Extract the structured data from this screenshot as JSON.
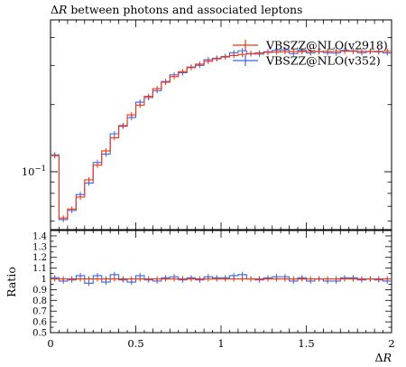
{
  "chart_data": [
    {
      "type": "line",
      "title": "ΔR between photons and associated leptons",
      "yscale": "log",
      "xlim": [
        0,
        2
      ],
      "ylim": [
        0.055,
        0.48
      ],
      "y_tick_labels": [
        {
          "value": 0.1,
          "text": "10^-1"
        }
      ],
      "legend": {
        "position": "top-right"
      },
      "x": [
        0.025,
        0.075,
        0.125,
        0.175,
        0.225,
        0.275,
        0.325,
        0.375,
        0.425,
        0.475,
        0.525,
        0.575,
        0.625,
        0.675,
        0.725,
        0.775,
        0.825,
        0.875,
        0.925,
        0.975,
        1.025,
        1.075,
        1.125,
        1.175,
        1.225,
        1.275,
        1.325,
        1.375,
        1.425,
        1.475,
        1.525,
        1.575,
        1.625,
        1.675,
        1.725,
        1.775,
        1.825,
        1.875,
        1.925,
        1.975
      ],
      "series": [
        {
          "name": "VBSZZ@NLO(v2918)",
          "color": "#ee3311",
          "values": [
            0.118,
            0.062,
            0.068,
            0.077,
            0.092,
            0.107,
            0.124,
            0.142,
            0.161,
            0.18,
            0.199,
            0.218,
            0.236,
            0.252,
            0.267,
            0.281,
            0.293,
            0.304,
            0.313,
            0.321,
            0.327,
            0.332,
            0.336,
            0.339,
            0.341,
            0.343,
            0.344,
            0.345,
            0.346,
            0.346,
            0.347,
            0.347,
            0.347,
            0.347,
            0.347,
            0.347,
            0.347,
            0.347,
            0.347,
            0.347
          ]
        },
        {
          "name": "VBSZZ@NLO(v352)",
          "color": "#3366ee",
          "values": [
            0.119,
            0.061,
            0.067,
            0.079,
            0.089,
            0.11,
            0.12,
            0.148,
            0.16,
            0.175,
            0.205,
            0.215,
            0.231,
            0.254,
            0.272,
            0.278,
            0.295,
            0.3,
            0.318,
            0.323,
            0.329,
            0.342,
            0.349,
            0.338,
            0.337,
            0.345,
            0.35,
            0.352,
            0.339,
            0.35,
            0.341,
            0.346,
            0.342,
            0.341,
            0.35,
            0.349,
            0.342,
            0.346,
            0.345,
            0.341
          ]
        }
      ]
    },
    {
      "type": "line",
      "xlabel": "ΔR",
      "ylabel": "Ratio",
      "xlim": [
        0,
        2
      ],
      "ylim": [
        0.5,
        1.45
      ],
      "x_tick_labels": [
        "0",
        "0.5",
        "1",
        "1.5",
        "2"
      ],
      "y_tick_labels": [
        "0.5",
        "0.6",
        "0.7",
        "0.8",
        "0.9",
        "1",
        "1.1",
        "1.2",
        "1.3",
        "1.4"
      ],
      "series": [
        {
          "name": "VBSZZ@NLO(v2918)",
          "color": "#ee3311",
          "values": [
            1,
            1,
            1,
            1,
            1,
            1,
            1,
            1,
            1,
            1,
            1,
            1,
            1,
            1,
            1,
            1,
            1,
            1,
            1,
            1,
            1,
            1,
            1,
            1,
            1,
            1,
            1,
            1,
            1,
            1,
            1,
            1,
            1,
            1,
            1,
            1,
            1,
            1,
            1,
            1
          ]
        },
        {
          "name": "VBSZZ@NLO(v352)",
          "color": "#3366ee",
          "values": [
            1.01,
            0.98,
            0.99,
            1.03,
            0.96,
            1.03,
            0.97,
            1.04,
            0.99,
            0.97,
            1.03,
            0.99,
            0.98,
            1.01,
            1.02,
            0.99,
            1.01,
            0.99,
            1.02,
            1.01,
            1.01,
            1.03,
            1.04,
            1.0,
            0.99,
            1.01,
            1.02,
            1.02,
            0.98,
            1.01,
            0.98,
            1.0,
            0.98,
            0.98,
            1.01,
            1.01,
            0.99,
            1.0,
            0.99,
            0.98
          ]
        }
      ]
    }
  ]
}
